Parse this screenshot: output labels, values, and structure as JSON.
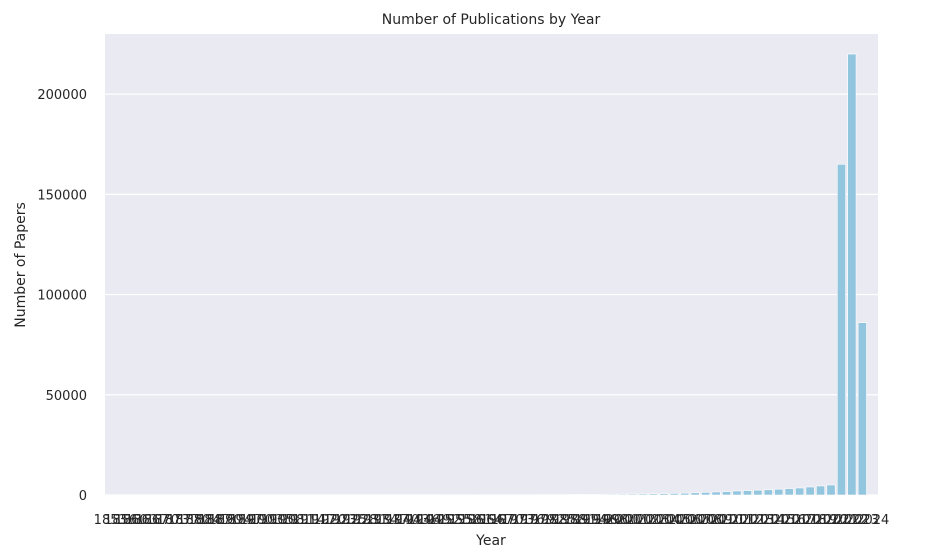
{
  "chart_data": {
    "type": "bar",
    "title": "Number of Publications by Year",
    "xlabel": "Year",
    "ylabel": "Number of Papers",
    "ylim": [
      0,
      230000
    ],
    "yticks": [
      0,
      50000,
      100000,
      150000,
      200000
    ],
    "grid": true,
    "bar_color": "#92c5de",
    "background_color": "#eaeaf2",
    "categories": [
      "1853",
      "1856",
      "1860",
      "1863",
      "1867",
      "1870",
      "1873",
      "1877",
      "1880",
      "1884",
      "1887",
      "1890",
      "1894",
      "1897",
      "1900",
      "1903",
      "1905",
      "1908",
      "1911",
      "1914",
      "1917",
      "1920",
      "1923",
      "1925",
      "1928",
      "1931",
      "1934",
      "1937",
      "1940",
      "1943",
      "1946",
      "1949",
      "1952",
      "1955",
      "1958",
      "1961",
      "1964",
      "1967",
      "1970",
      "1973",
      "1976",
      "1979",
      "1982",
      "1985",
      "1988",
      "1991",
      "1994",
      "1996",
      "1998",
      "2000",
      "2001",
      "2002",
      "2003",
      "2004",
      "2005",
      "2006",
      "2007",
      "2008",
      "2009",
      "2010",
      "2011",
      "2012",
      "2013",
      "2014",
      "2015",
      "2016",
      "2017",
      "2018",
      "2019",
      "2020",
      "2021",
      "2022",
      "2023",
      "2024"
    ],
    "values": [
      1,
      1,
      1,
      1,
      1,
      1,
      1,
      1,
      1,
      1,
      1,
      1,
      1,
      1,
      1,
      2,
      2,
      2,
      2,
      2,
      2,
      3,
      3,
      3,
      3,
      4,
      4,
      5,
      5,
      6,
      6,
      8,
      10,
      12,
      15,
      20,
      25,
      35,
      45,
      60,
      80,
      100,
      130,
      160,
      200,
      250,
      300,
      350,
      400,
      450,
      500,
      550,
      600,
      700,
      800,
      900,
      1100,
      1300,
      1500,
      1700,
      2000,
      2200,
      2400,
      2600,
      2900,
      3200,
      3500,
      4000,
      4500,
      5000,
      165000,
      220000,
      86000,
      1
    ]
  }
}
